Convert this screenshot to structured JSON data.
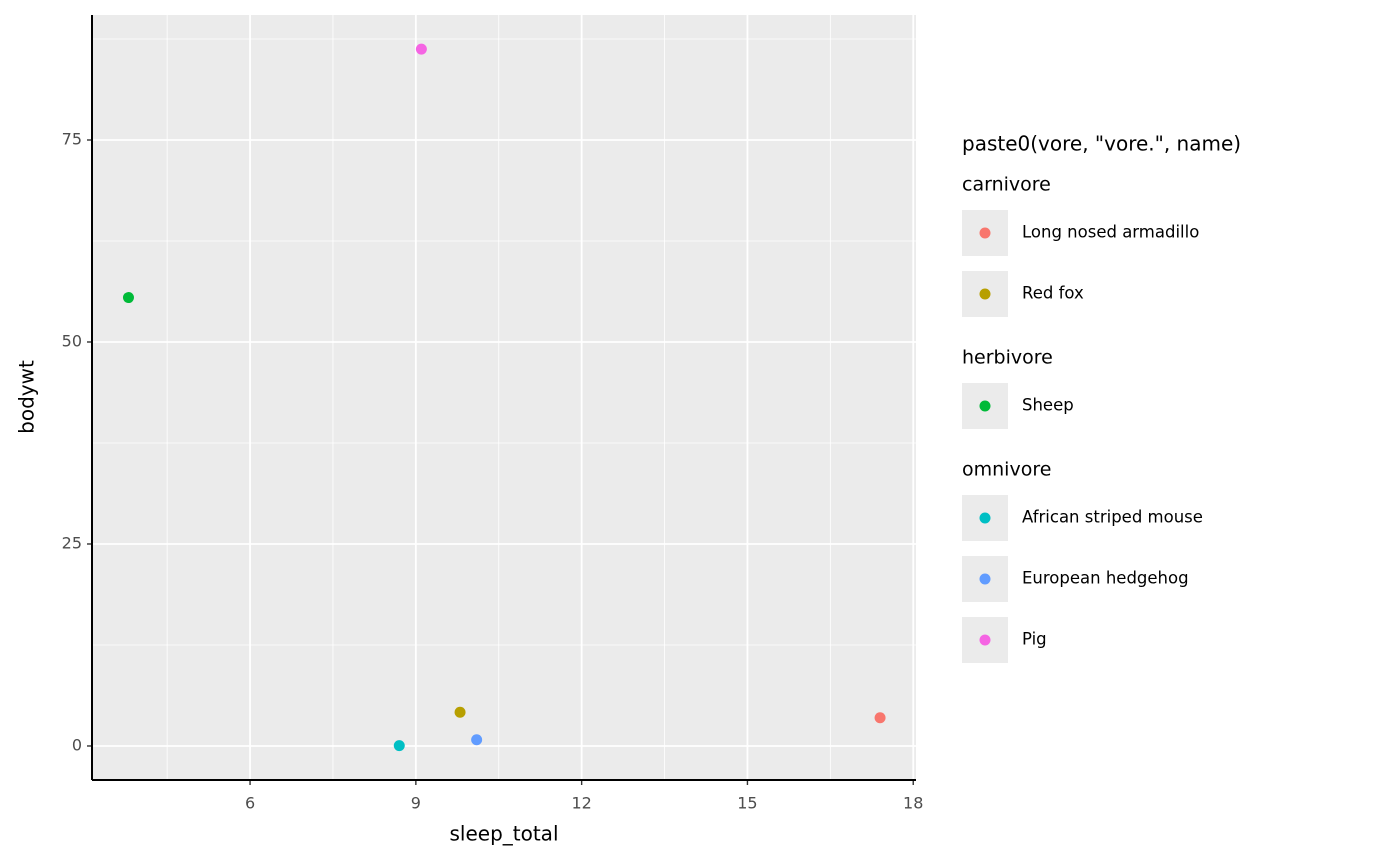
{
  "chart_data": {
    "type": "scatter",
    "x_label": "sleep_total",
    "y_label": "bodywt",
    "xlim": [
      3.14,
      18.05
    ],
    "ylim": [
      -4.21,
      90.47
    ],
    "xticks": [
      6,
      9,
      12,
      15,
      18
    ],
    "yticks": [
      0,
      25,
      50,
      75
    ],
    "xminor": [
      4.5,
      7.5,
      10.5,
      13.5,
      16.5
    ],
    "yminor": [
      12.5,
      37.5,
      62.5,
      87.5
    ],
    "grid": true,
    "legend_title": "paste0(vore, \"vore.\", name)",
    "groups": [
      {
        "name": "carnivore",
        "series": [
          {
            "name": "Long nosed armadillo",
            "color": "#F8766D",
            "x": [
              17.4
            ],
            "values": [
              3.5
            ]
          },
          {
            "name": "Red fox",
            "color": "#B79F00",
            "x": [
              9.8
            ],
            "values": [
              4.175
            ]
          }
        ]
      },
      {
        "name": "herbivore",
        "series": [
          {
            "name": "Sheep",
            "color": "#00BA38",
            "x": [
              3.8
            ],
            "values": [
              55.5
            ]
          }
        ]
      },
      {
        "name": "omnivore",
        "series": [
          {
            "name": "African striped mouse",
            "color": "#00BFC4",
            "x": [
              8.7
            ],
            "values": [
              0.044
            ]
          },
          {
            "name": "European hedgehog",
            "color": "#619CFF",
            "x": [
              10.1
            ],
            "values": [
              0.77
            ]
          },
          {
            "name": "Pig",
            "color": "#F564E3",
            "x": [
              9.1
            ],
            "values": [
              86.25
            ]
          }
        ]
      }
    ]
  }
}
